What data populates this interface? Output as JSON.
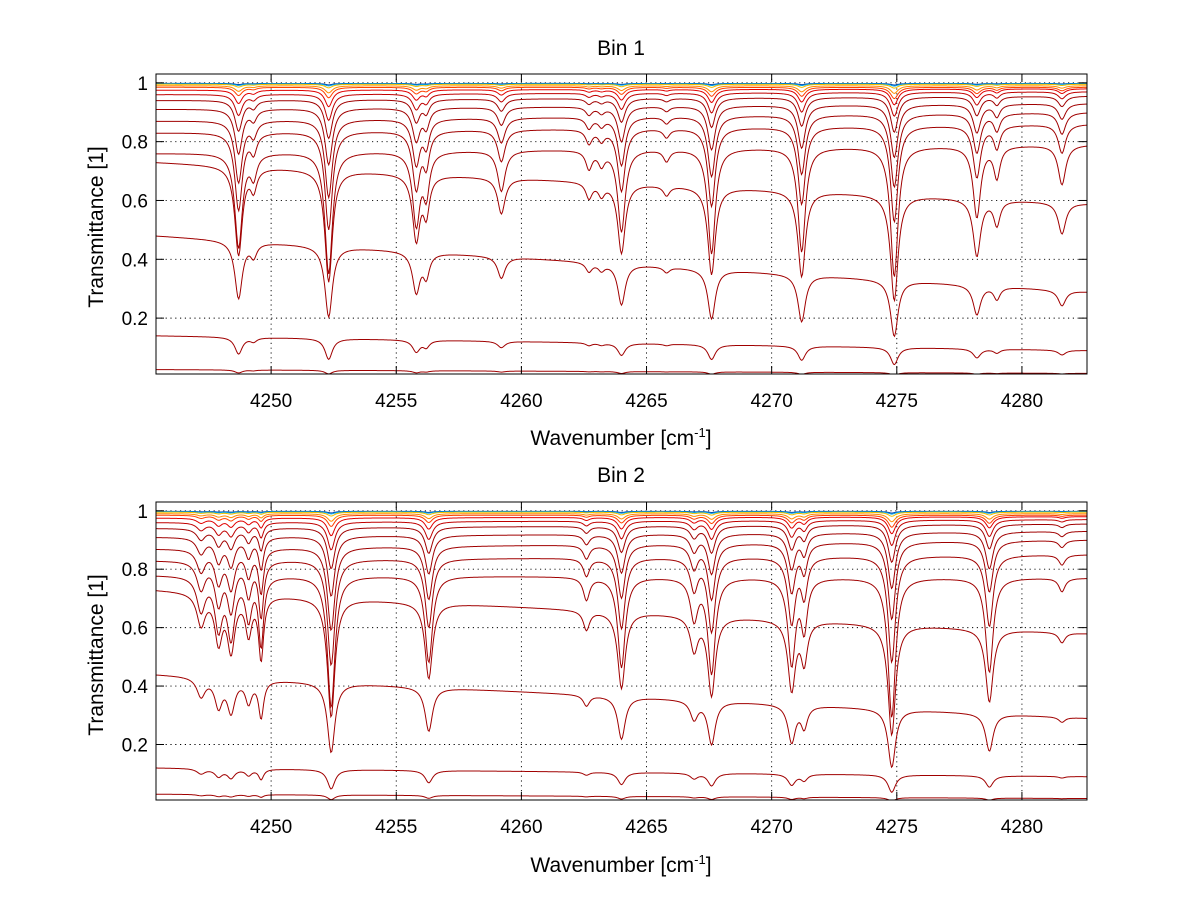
{
  "chart_data": [
    {
      "type": "line",
      "title": "Bin 1",
      "xlabel": "Wavenumber [cm",
      "xlabel_unit_exp": "-1",
      "xlabel_close": "]",
      "ylabel": "Transmittance [1]",
      "xlim": [
        4245.4,
        4282.6
      ],
      "ylim": [
        0.01,
        1.03
      ],
      "xticks": [
        4250,
        4255,
        4260,
        4265,
        4270,
        4275,
        4280
      ],
      "xtick_labels": [
        "4250",
        "4255",
        "4260",
        "4265",
        "4270",
        "4275",
        "4280"
      ],
      "yticks": [
        0.2,
        0.4,
        0.6,
        0.8,
        1.0
      ],
      "ytick_labels": [
        "0.2",
        "0.4",
        "0.6",
        "0.8",
        "1"
      ],
      "grid": true,
      "line_colors": [
        "#0040b0",
        "#00a0e0",
        "#f0c000",
        "#ff8c00",
        "#ff4000",
        "#e00000",
        "#a00000"
      ],
      "absorption_lines": [
        {
          "x": 4248.7,
          "depth": 0.42,
          "width": 0.18
        },
        {
          "x": 4249.3,
          "depth": 0.1,
          "width": 0.15
        },
        {
          "x": 4252.3,
          "depth": 0.54,
          "width": 0.18
        },
        {
          "x": 4255.8,
          "depth": 0.32,
          "width": 0.18
        },
        {
          "x": 4256.2,
          "depth": 0.18,
          "width": 0.15
        },
        {
          "x": 4259.2,
          "depth": 0.18,
          "width": 0.18
        },
        {
          "x": 4262.7,
          "depth": 0.08,
          "width": 0.15
        },
        {
          "x": 4263.2,
          "depth": 0.06,
          "width": 0.15
        },
        {
          "x": 4264.0,
          "depth": 0.36,
          "width": 0.18
        },
        {
          "x": 4265.8,
          "depth": 0.05,
          "width": 0.15
        },
        {
          "x": 4267.6,
          "depth": 0.46,
          "width": 0.18
        },
        {
          "x": 4271.2,
          "depth": 0.46,
          "width": 0.18
        },
        {
          "x": 4274.9,
          "depth": 0.58,
          "width": 0.18
        },
        {
          "x": 4278.2,
          "depth": 0.32,
          "width": 0.18
        },
        {
          "x": 4279.0,
          "depth": 0.14,
          "width": 0.15
        },
        {
          "x": 4281.6,
          "depth": 0.18,
          "width": 0.18
        }
      ],
      "series": [
        {
          "color": "#0040b0",
          "x": [
            4245.4,
            4282.6
          ],
          "baseline": [
            0.998,
            0.998
          ]
        },
        {
          "color": "#00a0e0",
          "x": [
            4245.4,
            4282.6
          ],
          "baseline": [
            0.997,
            0.997
          ]
        },
        {
          "color": "#f0c000",
          "x": [
            4245.4,
            4282.6
          ],
          "baseline": [
            0.995,
            0.995
          ]
        },
        {
          "color": "#ff8c00",
          "x": [
            4245.4,
            4282.6
          ],
          "baseline": [
            0.99,
            0.99
          ]
        },
        {
          "color": "#ff4000",
          "x": [
            4245.4,
            4282.6
          ],
          "baseline": [
            0.985,
            0.985
          ]
        },
        {
          "color": "#e00000",
          "x": [
            4245.4,
            4282.6
          ],
          "baseline": [
            0.975,
            0.98
          ]
        },
        {
          "color": "#c00000",
          "x": [
            4245.4,
            4282.6
          ],
          "baseline": [
            0.96,
            0.97
          ]
        },
        {
          "color": "#a00000",
          "x": [
            4245.4,
            4282.6
          ],
          "baseline": [
            0.94,
            0.955
          ]
        },
        {
          "color": "#a00000",
          "x": [
            4245.4,
            4282.6
          ],
          "baseline": [
            0.91,
            0.93
          ]
        },
        {
          "color": "#a00000",
          "x": [
            4245.4,
            4282.6
          ],
          "baseline": [
            0.87,
            0.9
          ]
        },
        {
          "color": "#a00000",
          "x": [
            4245.4,
            4282.6
          ],
          "baseline": [
            0.83,
            0.86
          ]
        },
        {
          "color": "#a00000",
          "x": [
            4245.4,
            4282.6
          ],
          "baseline": [
            0.76,
            0.79
          ]
        },
        {
          "color": "#a00000",
          "x": [
            4245.4,
            4282.6
          ],
          "baseline": [
            0.73,
            0.59
          ]
        },
        {
          "color": "#a00000",
          "x": [
            4245.4,
            4282.6
          ],
          "baseline": [
            0.48,
            0.29
          ]
        },
        {
          "color": "#a00000",
          "x": [
            4245.4,
            4282.6
          ],
          "baseline": [
            0.14,
            0.09
          ]
        },
        {
          "color": "#a00000",
          "x": [
            4245.4,
            4282.6
          ],
          "baseline": [
            0.025,
            0.012
          ]
        }
      ]
    },
    {
      "type": "line",
      "title": "Bin 2",
      "xlabel": "Wavenumber [cm",
      "xlabel_unit_exp": "-1",
      "xlabel_close": "]",
      "ylabel": "Transmittance [1]",
      "xlim": [
        4245.4,
        4282.6
      ],
      "ylim": [
        0.01,
        1.03
      ],
      "xticks": [
        4250,
        4255,
        4260,
        4265,
        4270,
        4275,
        4280
      ],
      "xtick_labels": [
        "4250",
        "4255",
        "4260",
        "4265",
        "4270",
        "4275",
        "4280"
      ],
      "yticks": [
        0.2,
        0.4,
        0.6,
        0.8,
        1.0
      ],
      "ytick_labels": [
        "0.2",
        "0.4",
        "0.6",
        "0.8",
        "1"
      ],
      "grid": true,
      "line_colors": [
        "#0040b0",
        "#00a0e0",
        "#f0c000",
        "#ff8c00",
        "#ff4000",
        "#e00000",
        "#a00000"
      ],
      "absorption_lines": [
        {
          "x": 4247.2,
          "depth": 0.15,
          "width": 0.2
        },
        {
          "x": 4247.9,
          "depth": 0.22,
          "width": 0.18
        },
        {
          "x": 4248.4,
          "depth": 0.26,
          "width": 0.18
        },
        {
          "x": 4249.1,
          "depth": 0.18,
          "width": 0.15
        },
        {
          "x": 4249.6,
          "depth": 0.3,
          "width": 0.12
        },
        {
          "x": 4252.4,
          "depth": 0.58,
          "width": 0.18
        },
        {
          "x": 4256.3,
          "depth": 0.38,
          "width": 0.18
        },
        {
          "x": 4262.6,
          "depth": 0.1,
          "width": 0.15
        },
        {
          "x": 4264.0,
          "depth": 0.4,
          "width": 0.18
        },
        {
          "x": 4266.9,
          "depth": 0.18,
          "width": 0.18
        },
        {
          "x": 4267.6,
          "depth": 0.42,
          "width": 0.18
        },
        {
          "x": 4270.8,
          "depth": 0.38,
          "width": 0.18
        },
        {
          "x": 4271.3,
          "depth": 0.22,
          "width": 0.15
        },
        {
          "x": 4274.8,
          "depth": 0.62,
          "width": 0.18
        },
        {
          "x": 4278.7,
          "depth": 0.42,
          "width": 0.18
        },
        {
          "x": 4281.6,
          "depth": 0.06,
          "width": 0.15
        }
      ],
      "series": [
        {
          "color": "#0040b0",
          "x": [
            4245.4,
            4282.6
          ],
          "baseline": [
            0.998,
            0.998
          ]
        },
        {
          "color": "#00a0e0",
          "x": [
            4245.4,
            4282.6
          ],
          "baseline": [
            0.997,
            0.997
          ]
        },
        {
          "color": "#f0c000",
          "x": [
            4245.4,
            4282.6
          ],
          "baseline": [
            0.995,
            0.995
          ]
        },
        {
          "color": "#ff8c00",
          "x": [
            4245.4,
            4282.6
          ],
          "baseline": [
            0.99,
            0.99
          ]
        },
        {
          "color": "#ff4000",
          "x": [
            4245.4,
            4282.6
          ],
          "baseline": [
            0.985,
            0.985
          ]
        },
        {
          "color": "#e00000",
          "x": [
            4245.4,
            4282.6
          ],
          "baseline": [
            0.975,
            0.98
          ]
        },
        {
          "color": "#c00000",
          "x": [
            4245.4,
            4282.6
          ],
          "baseline": [
            0.96,
            0.97
          ]
        },
        {
          "color": "#a00000",
          "x": [
            4245.4,
            4282.6
          ],
          "baseline": [
            0.94,
            0.955
          ]
        },
        {
          "color": "#a00000",
          "x": [
            4245.4,
            4282.6
          ],
          "baseline": [
            0.91,
            0.93
          ]
        },
        {
          "color": "#a00000",
          "x": [
            4245.4,
            4282.6
          ],
          "baseline": [
            0.87,
            0.9
          ]
        },
        {
          "color": "#a00000",
          "x": [
            4245.4,
            4282.6
          ],
          "baseline": [
            0.83,
            0.85
          ]
        },
        {
          "color": "#a00000",
          "x": [
            4245.4,
            4282.6
          ],
          "baseline": [
            0.78,
            0.77
          ]
        },
        {
          "color": "#a00000",
          "x": [
            4245.4,
            4282.6
          ],
          "baseline": [
            0.73,
            0.58
          ]
        },
        {
          "color": "#a00000",
          "x": [
            4245.4,
            4282.6
          ],
          "baseline": [
            0.44,
            0.29
          ]
        },
        {
          "color": "#a00000",
          "x": [
            4245.4,
            4282.6
          ],
          "baseline": [
            0.12,
            0.09
          ]
        },
        {
          "color": "#a00000",
          "x": [
            4245.4,
            4282.6
          ],
          "baseline": [
            0.03,
            0.015
          ]
        }
      ]
    }
  ]
}
